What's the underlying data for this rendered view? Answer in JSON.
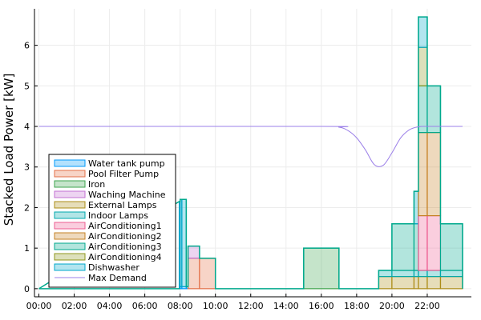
{
  "chart_data": {
    "type": "area",
    "ylabel": "Stacked Load Power [kW]",
    "xlabel": "",
    "xlim": [
      -0.25,
      24.5
    ],
    "ylim": [
      -0.2,
      6.9
    ],
    "grid": true,
    "legend_position": "bottom-left",
    "x_ticks": [
      0,
      2,
      4,
      6,
      8,
      10,
      12,
      14,
      16,
      18,
      20,
      22
    ],
    "x_tick_labels": [
      "00:00",
      "02:00",
      "04:00",
      "06:00",
      "08:00",
      "10:00",
      "12:00",
      "14:00",
      "16:00",
      "18:00",
      "20:00",
      "22:00"
    ],
    "y_ticks": [
      0,
      1,
      2,
      3,
      4,
      5,
      6
    ],
    "y_tick_labels": [
      "0",
      "1",
      "2",
      "3",
      "4",
      "5",
      "6"
    ],
    "series": [
      {
        "name": "Water tank pump",
        "color": "#009AFA",
        "segments": [
          [
            8.0,
            8.1,
            0.05
          ],
          [
            8.1,
            8.45,
            0.05
          ]
        ]
      },
      {
        "name": "Pool Filter Pump",
        "color": "#E36F47",
        "segments": [
          [
            8.45,
            10.0,
            0.75
          ]
        ]
      },
      {
        "name": "Iron",
        "color": "#3EA44E",
        "segments": [
          [
            15.0,
            17.0,
            1.0
          ]
        ]
      },
      {
        "name": "Waching Machine",
        "color": "#C271D2",
        "segments": [
          [
            8.45,
            9.1,
            0.3
          ]
        ]
      },
      {
        "name": "External Lamps",
        "color": "#AC8D18",
        "segments": [
          [
            19.25,
            21.5,
            0.3
          ],
          [
            21.5,
            22.75,
            0.3
          ],
          [
            22.75,
            24.0,
            0.3
          ]
        ]
      },
      {
        "name": "Indoor Lamps",
        "color": "#00A9AD",
        "segments": [
          [
            19.25,
            21.5,
            0.15
          ],
          [
            21.5,
            22.75,
            0.15
          ],
          [
            22.75,
            24.0,
            0.15
          ]
        ]
      },
      {
        "name": "AirConditioning1",
        "color": "#ED5D92",
        "segments": [
          [
            21.5,
            22.75,
            1.35
          ]
        ]
      },
      {
        "name": "AirConditioning2",
        "color": "#C68225",
        "segments": [
          [
            21.5,
            22.75,
            2.05
          ]
        ]
      },
      {
        "name": "AirConditioning3",
        "color": "#00A98D",
        "segments": [
          [
            20.0,
            21.5,
            1.15
          ],
          [
            21.5,
            22.75,
            1.15
          ],
          [
            22.75,
            24.0,
            1.15
          ]
        ]
      },
      {
        "name": "AirConditioning4",
        "color": "#8E971D",
        "segments": [
          [
            21.5,
            22.0,
            0.95
          ]
        ]
      },
      {
        "name": "Dishwasher",
        "color": "#00A8CB",
        "segments": [
          [
            7.95,
            8.35,
            2.15
          ],
          [
            8.35,
            8.45,
            0.0
          ],
          [
            21.25,
            21.5,
            0.8
          ],
          [
            21.5,
            22.0,
            0.75
          ]
        ]
      },
      {
        "name": "Max Demand",
        "color": "#9B7FE8",
        "type": "line"
      }
    ],
    "stack_outline_color": "#00A98D",
    "max_demand": {
      "x": [
        0.0,
        16.0,
        17.0,
        17.5,
        18.0,
        18.5,
        19.0,
        19.5,
        20.0,
        20.5,
        21.0,
        21.5,
        22.0,
        24.0
      ],
      "y": [
        4.0,
        4.0,
        3.98,
        3.9,
        3.72,
        3.42,
        3.06,
        3.04,
        3.35,
        3.72,
        3.92,
        3.99,
        4.0,
        4.0
      ]
    }
  }
}
